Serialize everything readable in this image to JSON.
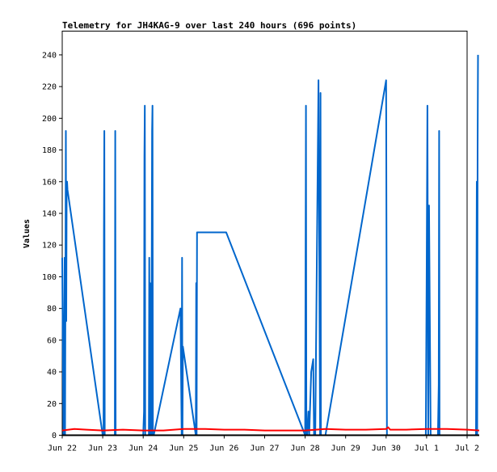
{
  "chart_data": {
    "type": "line",
    "title": "Telemetry for JH4KAG-9 over last 240 hours (696 points)",
    "xlabel": "",
    "ylabel": "Values",
    "x_range": [
      "Jun 22",
      "Jul 2"
    ],
    "ylim": [
      0,
      255
    ],
    "grid": false,
    "legend": "none",
    "x_ticks": [
      "Jun 22",
      "Jun 23",
      "Jun 24",
      "Jun 25",
      "Jun 26",
      "Jun 27",
      "Jun 28",
      "Jun 29",
      "Jun 30",
      "Jul 1",
      "Jul 2"
    ],
    "y_ticks": [
      0,
      20,
      40,
      60,
      80,
      100,
      120,
      140,
      160,
      180,
      200,
      220,
      240
    ],
    "series": [
      {
        "color": "#0066cc",
        "x": [
          0.0,
          0.03,
          0.06,
          0.07,
          0.09,
          0.1,
          0.11,
          0.12,
          0.13,
          1.0,
          1.02,
          1.03,
          1.04,
          1.05,
          1.2,
          1.3,
          1.31,
          1.32,
          2.0,
          2.02,
          2.03,
          2.04,
          2.05,
          2.14,
          2.15,
          2.16,
          2.17,
          2.2,
          2.22,
          2.23,
          2.24,
          2.26,
          2.92,
          2.95,
          2.96,
          2.97,
          2.98,
          3.3,
          3.31,
          3.32,
          3.33,
          4.05,
          6.0,
          6.02,
          6.03,
          6.05,
          6.08,
          6.1,
          6.15,
          6.2,
          6.22,
          6.25,
          6.33,
          6.37,
          6.38,
          6.39,
          6.4,
          6.5,
          8.0,
          8.02,
          8.04,
          8.06,
          8.98,
          9.0,
          9.02,
          9.04,
          9.06,
          9.1,
          9.28,
          9.3,
          9.31,
          9.32,
          10.22,
          10.24,
          10.25,
          10.26,
          10.27
        ],
        "y": [
          112,
          0,
          112,
          0,
          192,
          72,
          160,
          160,
          155,
          0,
          0,
          128,
          192,
          0,
          0,
          0,
          192,
          0,
          0,
          15,
          176,
          208,
          0,
          0,
          112,
          0,
          96,
          0,
          192,
          208,
          0,
          0,
          80,
          0,
          112,
          0,
          56,
          0,
          96,
          0,
          128,
          128,
          0,
          208,
          0,
          0,
          15,
          0,
          40,
          48,
          0,
          0,
          224,
          0,
          216,
          0,
          0,
          0,
          224,
          0,
          0,
          0,
          0,
          96,
          208,
          0,
          145,
          0,
          0,
          32,
          192,
          0,
          0,
          160,
          0,
          180,
          240
        ]
      },
      {
        "color": "#ff0000",
        "x": [
          0,
          0.3,
          0.6,
          1.0,
          1.5,
          2.0,
          2.5,
          3.0,
          3.5,
          4.0,
          4.5,
          5.0,
          5.5,
          6.0,
          6.5,
          7.0,
          7.5,
          8.0,
          8.05,
          8.1,
          8.5,
          9.0,
          9.5,
          10.0,
          10.3
        ],
        "y": [
          3,
          4,
          3.5,
          3,
          3.5,
          3,
          3,
          4,
          4,
          3.5,
          3.5,
          3,
          3,
          3,
          4,
          3.5,
          3.5,
          4,
          5,
          3.5,
          3.5,
          4,
          4,
          3.5,
          3
        ]
      },
      {
        "color": "#000000",
        "x": [
          0,
          10.3
        ],
        "y": [
          0,
          0
        ]
      }
    ]
  }
}
